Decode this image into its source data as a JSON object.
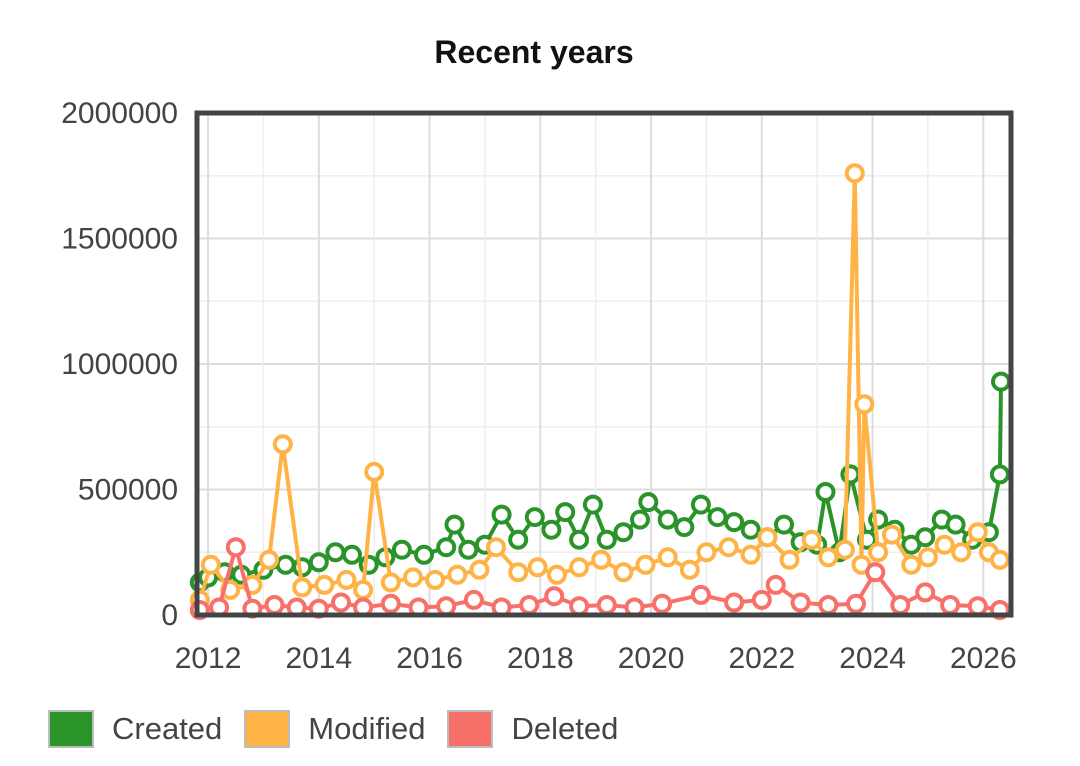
{
  "chart_data": {
    "type": "scatter",
    "title": "Recent years",
    "xlabel": "",
    "ylabel": "",
    "xlim": [
      2011.8,
      2026.5
    ],
    "ylim": [
      0,
      2000000
    ],
    "x_ticks": [
      "2012",
      "2014",
      "2016",
      "2018",
      "2020",
      "2022",
      "2024",
      "2026"
    ],
    "y_ticks": [
      "0",
      "500000",
      "1000000",
      "1500000",
      "2000000"
    ],
    "grid": true,
    "legend_position": "bottom-left",
    "series": [
      {
        "name": "Created",
        "color": "#2a942a",
        "points": [
          [
            2011.85,
            130000
          ],
          [
            2012.0,
            150000
          ],
          [
            2012.3,
            170000
          ],
          [
            2012.6,
            160000
          ],
          [
            2013.0,
            180000
          ],
          [
            2013.4,
            200000
          ],
          [
            2013.7,
            190000
          ],
          [
            2014.0,
            210000
          ],
          [
            2014.3,
            250000
          ],
          [
            2014.6,
            240000
          ],
          [
            2014.9,
            200000
          ],
          [
            2015.2,
            230000
          ],
          [
            2015.5,
            260000
          ],
          [
            2015.9,
            240000
          ],
          [
            2016.3,
            270000
          ],
          [
            2016.45,
            360000
          ],
          [
            2016.7,
            260000
          ],
          [
            2017.0,
            280000
          ],
          [
            2017.3,
            400000
          ],
          [
            2017.6,
            300000
          ],
          [
            2017.9,
            390000
          ],
          [
            2018.2,
            340000
          ],
          [
            2018.45,
            410000
          ],
          [
            2018.7,
            300000
          ],
          [
            2018.95,
            440000
          ],
          [
            2019.2,
            300000
          ],
          [
            2019.5,
            330000
          ],
          [
            2019.8,
            380000
          ],
          [
            2019.95,
            450000
          ],
          [
            2020.3,
            380000
          ],
          [
            2020.6,
            350000
          ],
          [
            2020.9,
            440000
          ],
          [
            2021.2,
            390000
          ],
          [
            2021.5,
            370000
          ],
          [
            2021.8,
            340000
          ],
          [
            2022.1,
            310000
          ],
          [
            2022.4,
            360000
          ],
          [
            2022.7,
            290000
          ],
          [
            2023.0,
            280000
          ],
          [
            2023.15,
            490000
          ],
          [
            2023.4,
            250000
          ],
          [
            2023.6,
            560000
          ],
          [
            2023.9,
            300000
          ],
          [
            2024.1,
            380000
          ],
          [
            2024.4,
            340000
          ],
          [
            2024.7,
            280000
          ],
          [
            2024.95,
            310000
          ],
          [
            2025.25,
            380000
          ],
          [
            2025.5,
            360000
          ],
          [
            2025.8,
            300000
          ],
          [
            2026.1,
            330000
          ],
          [
            2026.3,
            560000
          ],
          [
            2026.32,
            930000
          ]
        ]
      },
      {
        "name": "Modified",
        "color": "#ffb347",
        "points": [
          [
            2011.85,
            60000
          ],
          [
            2012.05,
            200000
          ],
          [
            2012.4,
            100000
          ],
          [
            2012.8,
            120000
          ],
          [
            2013.1,
            220000
          ],
          [
            2013.35,
            680000
          ],
          [
            2013.7,
            110000
          ],
          [
            2014.1,
            120000
          ],
          [
            2014.5,
            140000
          ],
          [
            2014.8,
            100000
          ],
          [
            2015.0,
            570000
          ],
          [
            2015.3,
            130000
          ],
          [
            2015.7,
            150000
          ],
          [
            2016.1,
            140000
          ],
          [
            2016.5,
            160000
          ],
          [
            2016.9,
            180000
          ],
          [
            2017.2,
            270000
          ],
          [
            2017.6,
            170000
          ],
          [
            2017.95,
            190000
          ],
          [
            2018.3,
            160000
          ],
          [
            2018.7,
            190000
          ],
          [
            2019.1,
            220000
          ],
          [
            2019.5,
            170000
          ],
          [
            2019.9,
            200000
          ],
          [
            2020.3,
            230000
          ],
          [
            2020.7,
            180000
          ],
          [
            2021.0,
            250000
          ],
          [
            2021.4,
            270000
          ],
          [
            2021.8,
            240000
          ],
          [
            2022.1,
            310000
          ],
          [
            2022.5,
            220000
          ],
          [
            2022.9,
            300000
          ],
          [
            2023.2,
            230000
          ],
          [
            2023.5,
            260000
          ],
          [
            2023.68,
            1760000
          ],
          [
            2023.8,
            200000
          ],
          [
            2023.85,
            840000
          ],
          [
            2024.1,
            250000
          ],
          [
            2024.35,
            320000
          ],
          [
            2024.7,
            200000
          ],
          [
            2025.0,
            230000
          ],
          [
            2025.3,
            280000
          ],
          [
            2025.6,
            250000
          ],
          [
            2025.9,
            330000
          ],
          [
            2026.1,
            250000
          ],
          [
            2026.3,
            220000
          ]
        ]
      },
      {
        "name": "Deleted",
        "color": "#f8706a",
        "points": [
          [
            2011.85,
            20000
          ],
          [
            2012.2,
            30000
          ],
          [
            2012.5,
            270000
          ],
          [
            2012.8,
            25000
          ],
          [
            2013.2,
            40000
          ],
          [
            2013.6,
            30000
          ],
          [
            2014.0,
            25000
          ],
          [
            2014.4,
            50000
          ],
          [
            2014.8,
            30000
          ],
          [
            2015.3,
            45000
          ],
          [
            2015.8,
            30000
          ],
          [
            2016.3,
            35000
          ],
          [
            2016.8,
            60000
          ],
          [
            2017.3,
            30000
          ],
          [
            2017.8,
            40000
          ],
          [
            2018.25,
            75000
          ],
          [
            2018.7,
            35000
          ],
          [
            2019.2,
            40000
          ],
          [
            2019.7,
            30000
          ],
          [
            2020.2,
            45000
          ],
          [
            2020.9,
            80000
          ],
          [
            2021.5,
            50000
          ],
          [
            2022.0,
            60000
          ],
          [
            2022.25,
            120000
          ],
          [
            2022.7,
            50000
          ],
          [
            2023.2,
            40000
          ],
          [
            2023.7,
            45000
          ],
          [
            2024.05,
            170000
          ],
          [
            2024.5,
            40000
          ],
          [
            2024.95,
            90000
          ],
          [
            2025.4,
            40000
          ],
          [
            2025.9,
            35000
          ],
          [
            2026.3,
            20000
          ]
        ]
      }
    ]
  }
}
